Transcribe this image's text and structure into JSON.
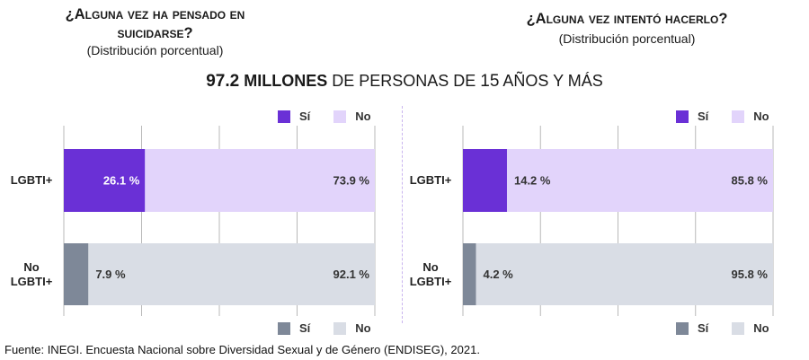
{
  "colors": {
    "lgbti_si": "#6a30d6",
    "lgbti_no": "#e2d4fb",
    "no_lgbti_si": "#7e8898",
    "no_lgbti_no": "#d9dde5",
    "grid": "#b9b9b9",
    "divider": "#c9b4ef"
  },
  "headline": {
    "number": "97.2",
    "unit": " MILLONES",
    "rest": " DE PERSONAS DE ",
    "age": "15",
    "tail": " AÑOS Y MÁS"
  },
  "row_labels": {
    "lgbti": "LGBTI+",
    "no_lgbti_1": "No",
    "no_lgbti_2": "LGBTI+"
  },
  "legend": {
    "si": "Sí",
    "no": "No"
  },
  "source": "Fuente: INEGI. Encuesta Nacional sobre Diversidad Sexual y de Género (ENDISEG), 2021.",
  "chart_data": [
    {
      "type": "bar",
      "orientation": "horizontal",
      "stacked": true,
      "title_line1": "¿Alguna vez ha pensado en",
      "title_line2": "suicidarse?",
      "subtitle": "(Distribución porcentual)",
      "categories": [
        "LGBTI+",
        "No LGBTI+"
      ],
      "series": [
        {
          "name": "Sí",
          "values": [
            26.1,
            7.9
          ],
          "labels": [
            "26.1 %",
            "7.9 %"
          ]
        },
        {
          "name": "No",
          "values": [
            73.9,
            92.1
          ],
          "labels": [
            "73.9 %",
            "92.1 %"
          ]
        }
      ],
      "xlim": [
        0,
        100
      ],
      "grid": true,
      "legend": [
        "top-right",
        "bottom-right"
      ]
    },
    {
      "type": "bar",
      "orientation": "horizontal",
      "stacked": true,
      "title_line1": "¿Alguna vez intentó hacerlo?",
      "subtitle": "(Distribución porcentual)",
      "categories": [
        "LGBTI+",
        "No LGBTI+"
      ],
      "series": [
        {
          "name": "Sí",
          "values": [
            14.2,
            4.2
          ],
          "labels": [
            "14.2 %",
            "4.2 %"
          ]
        },
        {
          "name": "No",
          "values": [
            85.8,
            95.8
          ],
          "labels": [
            "85.8 %",
            "95.8 %"
          ]
        }
      ],
      "xlim": [
        0,
        100
      ],
      "grid": true,
      "legend": [
        "top-right",
        "bottom-right"
      ]
    }
  ]
}
